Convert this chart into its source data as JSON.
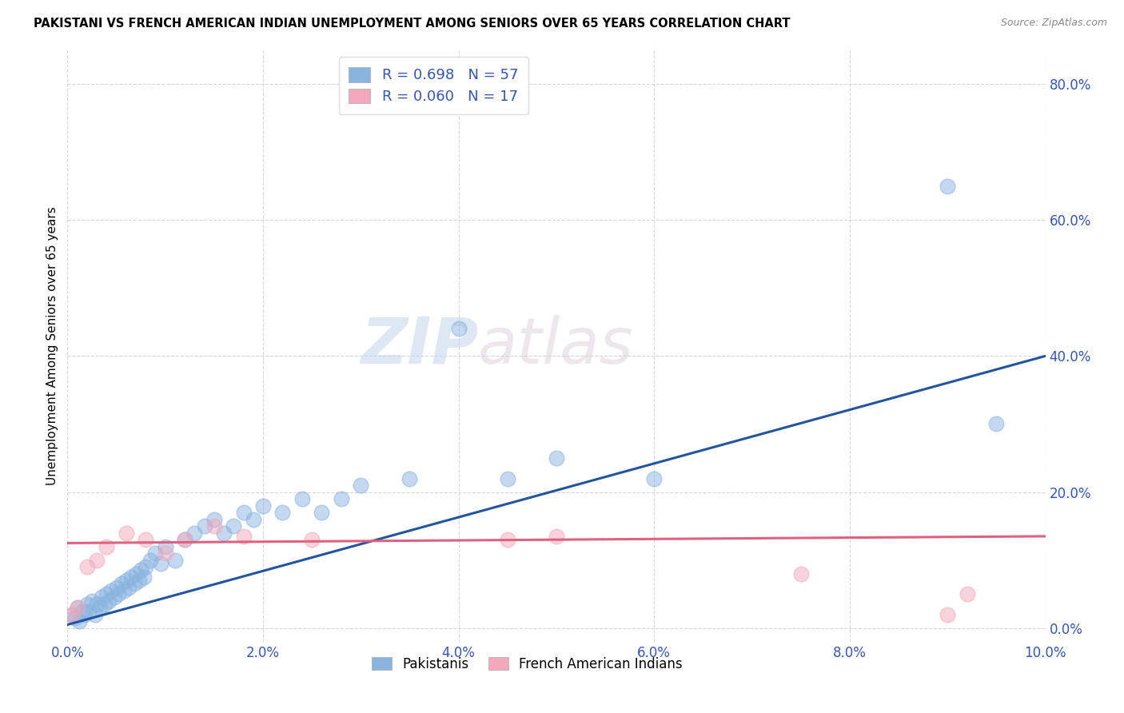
{
  "title": "PAKISTANI VS FRENCH AMERICAN INDIAN UNEMPLOYMENT AMONG SENIORS OVER 65 YEARS CORRELATION CHART",
  "source": "Source: ZipAtlas.com",
  "ylabel": "Unemployment Among Seniors over 65 years",
  "x_tick_labels": [
    "0.0%",
    "2.0%",
    "4.0%",
    "6.0%",
    "8.0%",
    "10.0%"
  ],
  "x_tick_vals": [
    0.0,
    2.0,
    4.0,
    6.0,
    8.0,
    10.0
  ],
  "y_tick_labels": [
    "0.0%",
    "20.0%",
    "40.0%",
    "60.0%",
    "80.0%"
  ],
  "y_tick_vals": [
    0.0,
    20.0,
    40.0,
    60.0,
    80.0
  ],
  "xlim": [
    0.0,
    10.0
  ],
  "ylim": [
    -2.0,
    85.0
  ],
  "pakistani_R": 0.698,
  "pakistani_N": 57,
  "french_R": 0.06,
  "french_N": 17,
  "blue_color": "#8ab4e0",
  "pink_color": "#f4a8bb",
  "blue_line_color": "#2155a0",
  "pink_line_color": "#e06080",
  "legend_blue_label": "Pakistanis",
  "legend_pink_label": "French American Indians",
  "watermark_zip": "ZIP",
  "watermark_atlas": "atlas",
  "pakistani_x": [
    0.05,
    0.08,
    0.1,
    0.12,
    0.15,
    0.18,
    0.2,
    0.22,
    0.25,
    0.28,
    0.3,
    0.33,
    0.35,
    0.38,
    0.4,
    0.42,
    0.45,
    0.48,
    0.5,
    0.52,
    0.55,
    0.58,
    0.6,
    0.63,
    0.65,
    0.68,
    0.7,
    0.73,
    0.75,
    0.78,
    0.8,
    0.85,
    0.9,
    0.95,
    1.0,
    1.1,
    1.2,
    1.3,
    1.4,
    1.5,
    1.6,
    1.7,
    1.8,
    1.9,
    2.0,
    2.2,
    2.4,
    2.6,
    2.8,
    3.0,
    3.5,
    4.0,
    4.5,
    5.0,
    6.0,
    9.0,
    9.5
  ],
  "pakistani_y": [
    2.0,
    1.5,
    3.0,
    1.0,
    2.5,
    2.0,
    3.5,
    2.5,
    4.0,
    2.0,
    3.5,
    3.0,
    4.5,
    3.5,
    5.0,
    4.0,
    5.5,
    4.5,
    6.0,
    5.0,
    6.5,
    5.5,
    7.0,
    6.0,
    7.5,
    6.5,
    8.0,
    7.0,
    8.5,
    7.5,
    9.0,
    10.0,
    11.0,
    9.5,
    12.0,
    10.0,
    13.0,
    14.0,
    15.0,
    16.0,
    14.0,
    15.0,
    17.0,
    16.0,
    18.0,
    17.0,
    19.0,
    17.0,
    19.0,
    21.0,
    22.0,
    44.0,
    22.0,
    25.0,
    22.0,
    65.0,
    30.0
  ],
  "french_x": [
    0.05,
    0.1,
    0.2,
    0.3,
    0.4,
    0.6,
    0.8,
    1.0,
    1.2,
    1.5,
    1.8,
    2.5,
    4.5,
    5.0,
    7.5,
    9.0,
    9.2
  ],
  "french_y": [
    2.0,
    3.0,
    9.0,
    10.0,
    12.0,
    14.0,
    13.0,
    11.0,
    13.0,
    15.0,
    13.5,
    13.0,
    13.0,
    13.5,
    8.0,
    2.0,
    5.0
  ],
  "blue_line_x0": 0.0,
  "blue_line_y0": 0.5,
  "blue_line_x1": 10.0,
  "blue_line_y1": 40.0,
  "pink_line_x0": 0.0,
  "pink_line_y0": 12.5,
  "pink_line_x1": 10.0,
  "pink_line_y1": 13.5
}
